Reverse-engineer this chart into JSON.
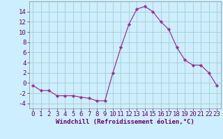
{
  "x": [
    0,
    1,
    2,
    3,
    4,
    5,
    6,
    7,
    8,
    9,
    10,
    11,
    12,
    13,
    14,
    15,
    16,
    17,
    18,
    19,
    20,
    21,
    22,
    23
  ],
  "y": [
    -0.5,
    -1.5,
    -1.5,
    -2.5,
    -2.5,
    -2.5,
    -2.8,
    -3.0,
    -3.5,
    -3.5,
    2.0,
    7.0,
    11.5,
    14.5,
    15.0,
    14.0,
    12.0,
    10.5,
    7.0,
    4.5,
    3.5,
    3.5,
    2.0,
    -0.5
  ],
  "line_color": "#993399",
  "marker": "D",
  "marker_size": 2.2,
  "bg_color": "#cceeff",
  "grid_color": "#aacccc",
  "xlabel": "Windchill (Refroidissement éolien,°C)",
  "xlabel_fontsize": 6.5,
  "tick_fontsize": 6.5,
  "xlim": [
    -0.5,
    23.5
  ],
  "ylim": [
    -5,
    16
  ],
  "yticks": [
    -4,
    -2,
    0,
    2,
    4,
    6,
    8,
    10,
    12,
    14
  ],
  "xticks": [
    0,
    1,
    2,
    3,
    4,
    5,
    6,
    7,
    8,
    9,
    10,
    11,
    12,
    13,
    14,
    15,
    16,
    17,
    18,
    19,
    20,
    21,
    22,
    23
  ]
}
